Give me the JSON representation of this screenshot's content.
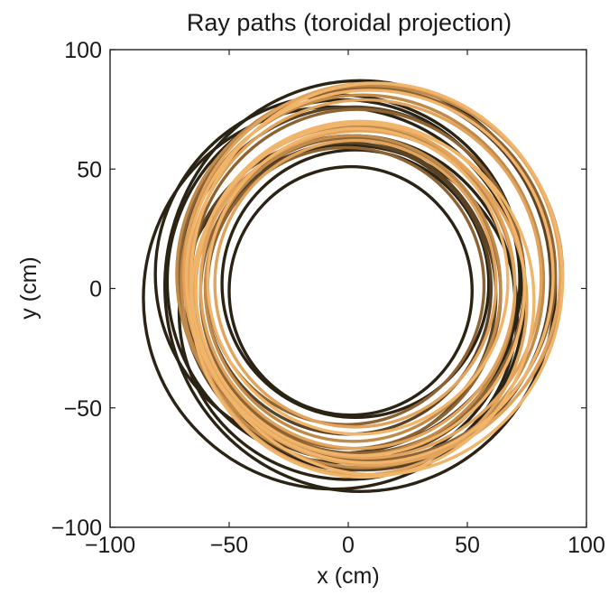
{
  "chart_data": {
    "type": "line",
    "title": "Ray paths (toroidal projection)",
    "xlabel": "x (cm)",
    "ylabel": "y (cm)",
    "xlim": [
      -100,
      100
    ],
    "ylim": [
      -100,
      100
    ],
    "xticks": [
      -100,
      -50,
      0,
      50,
      100
    ],
    "yticks": [
      -100,
      -50,
      0,
      50,
      100
    ],
    "xtick_labels": [
      "−100",
      "−50",
      "0",
      "50",
      "100"
    ],
    "ytick_labels": [
      "−100",
      "−50",
      "0",
      "50",
      "100"
    ],
    "grid": false,
    "legend": "none",
    "series": [
      {
        "color": "#2b2415",
        "loops": [
          {
            "cx": -6,
            "cy": -4,
            "rx": 80,
            "ry": 80
          },
          {
            "cx": -2,
            "cy": 3,
            "rx": 74,
            "ry": 76
          },
          {
            "cx": 2,
            "cy": -6,
            "rx": 68,
            "ry": 70
          },
          {
            "cx": 3,
            "cy": 2,
            "rx": 56,
            "ry": 56
          },
          {
            "cx": 1,
            "cy": -1,
            "rx": 51,
            "ry": 52
          },
          {
            "cx": 5,
            "cy": 1,
            "rx": 82,
            "ry": 86
          },
          {
            "cx": 0,
            "cy": -10,
            "rx": 71,
            "ry": 70
          },
          {
            "cx": -4,
            "cy": 6,
            "rx": 77,
            "ry": 75
          }
        ]
      },
      {
        "color": "#5a4224",
        "loops": [
          {
            "cx": 2,
            "cy": 2,
            "rx": 72,
            "ry": 74
          },
          {
            "cx": -3,
            "cy": -3,
            "rx": 65,
            "ry": 66
          },
          {
            "cx": 7,
            "cy": 4,
            "rx": 78,
            "ry": 80
          },
          {
            "cx": 0,
            "cy": 0,
            "rx": 60,
            "ry": 61
          }
        ]
      },
      {
        "color": "#8e6334",
        "loops": [
          {
            "cx": 4,
            "cy": 3,
            "rx": 70,
            "ry": 72
          },
          {
            "cx": 1,
            "cy": -2,
            "rx": 63,
            "ry": 65
          },
          {
            "cx": 8,
            "cy": 6,
            "rx": 79,
            "ry": 78
          },
          {
            "cx": -1,
            "cy": 1,
            "rx": 58,
            "ry": 58
          }
        ]
      },
      {
        "color": "#c08a4a",
        "loops": [
          {
            "cx": 6,
            "cy": 3,
            "rx": 76,
            "ry": 78
          },
          {
            "cx": 3,
            "cy": -1,
            "rx": 67,
            "ry": 69
          },
          {
            "cx": 9,
            "cy": 6,
            "rx": 81,
            "ry": 79
          },
          {
            "cx": 2,
            "cy": 0,
            "rx": 62,
            "ry": 64
          }
        ]
      },
      {
        "color": "#e2a45c",
        "loops": [
          {
            "cx": 7,
            "cy": 4,
            "rx": 74,
            "ry": 75
          },
          {
            "cx": 4,
            "cy": 1,
            "rx": 66,
            "ry": 68
          },
          {
            "cx": 10,
            "cy": 6,
            "rx": 79,
            "ry": 80
          },
          {
            "cx": 5,
            "cy": -6,
            "rx": 70,
            "ry": 72
          },
          {
            "cx": 3,
            "cy": 2,
            "rx": 59,
            "ry": 60
          }
        ]
      },
      {
        "color": "#f0b46a",
        "loops": [
          {
            "cx": 9,
            "cy": 5,
            "rx": 77,
            "ry": 78
          },
          {
            "cx": 5,
            "cy": 0,
            "rx": 69,
            "ry": 70
          },
          {
            "cx": 12,
            "cy": 4,
            "rx": 78,
            "ry": 82
          },
          {
            "cx": 6,
            "cy": -5,
            "rx": 72,
            "ry": 74
          },
          {
            "cx": 4,
            "cy": 3,
            "rx": 63,
            "ry": 64
          }
        ]
      }
    ]
  }
}
